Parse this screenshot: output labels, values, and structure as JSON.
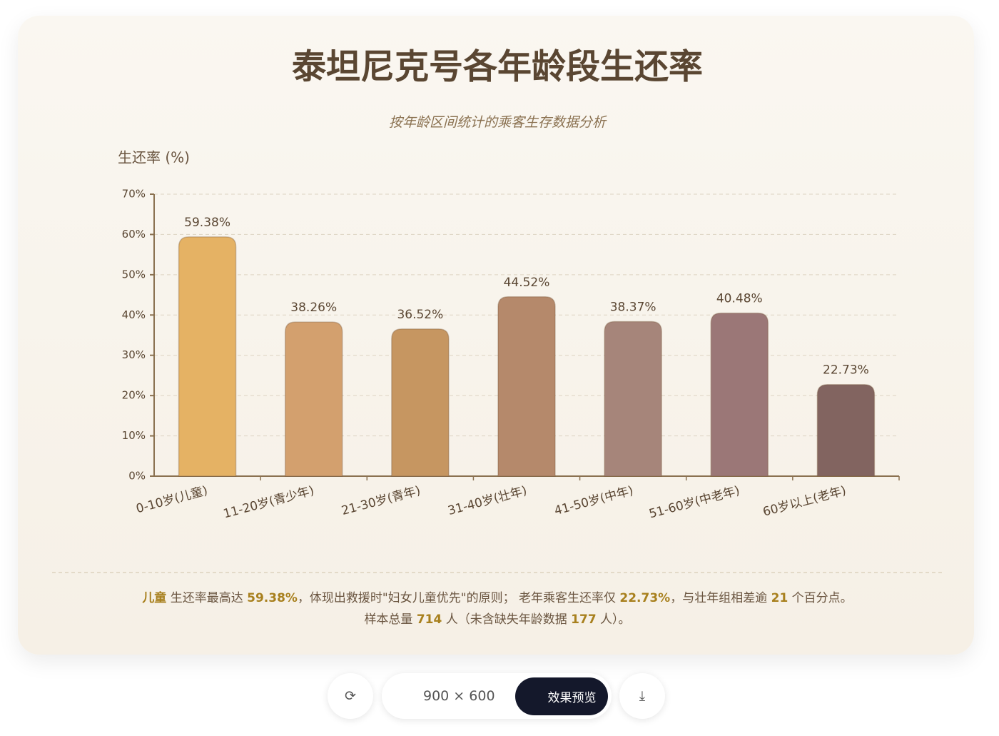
{
  "chart_data": {
    "type": "bar",
    "title": "泰坦尼克号各年龄段生还率",
    "subtitle": "按年龄区间统计的乘客生存数据分析",
    "y_label": "生还率 (%)",
    "categories": [
      "0-10岁(儿童)",
      "11-20岁(青少年)",
      "21-30岁(青年)",
      "31-40岁(壮年)",
      "41-50岁(中年)",
      "51-60岁(中老年)",
      "60岁以上(老年)"
    ],
    "values": [
      59.38,
      38.26,
      36.52,
      44.52,
      38.37,
      40.48,
      22.73
    ],
    "value_labels": [
      "59.38%",
      "38.26%",
      "36.52%",
      "44.52%",
      "38.37%",
      "40.48%",
      "22.73%"
    ],
    "colors": [
      "#e5b264",
      "#d3a06e",
      "#c69661",
      "#b5896b",
      "#a6857a",
      "#9b7777",
      "#826460"
    ],
    "ylim": [
      0,
      70
    ],
    "yticks": [
      {
        "value": 0,
        "label": "0%"
      },
      {
        "value": 10,
        "label": "10%"
      },
      {
        "value": 20,
        "label": "20%"
      },
      {
        "value": 30,
        "label": "30%"
      },
      {
        "value": 40,
        "label": "40%"
      },
      {
        "value": 50,
        "label": "50%"
      },
      {
        "value": 60,
        "label": "60%"
      },
      {
        "value": 70,
        "label": "70%"
      }
    ],
    "grid": true
  },
  "footer": {
    "lines": [
      [
        {
          "text": "儿童",
          "em": true
        },
        {
          "text": " 生还率最高达 "
        },
        {
          "text": "59.38%",
          "em": true
        },
        {
          "text": "，体现出救援时\"妇女儿童优先\"的原则； 老年乘客生还率仅 "
        },
        {
          "text": "22.73%",
          "em": true
        },
        {
          "text": "，与壮年组相差逾 "
        },
        {
          "text": "21",
          "em": true
        },
        {
          "text": " 个百分点。"
        }
      ],
      [
        {
          "text": "样本总量 "
        },
        {
          "text": "714",
          "em": true
        },
        {
          "text": " 人（未含缺失年龄数据 "
        },
        {
          "text": "177",
          "em": true
        },
        {
          "text": " 人）。"
        }
      ]
    ]
  },
  "toolbar": {
    "size": "900 × 600",
    "preview": "效果预览"
  }
}
